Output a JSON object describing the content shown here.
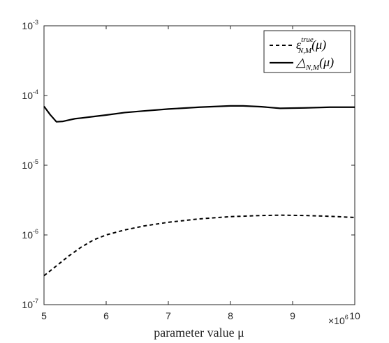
{
  "chart_data": {
    "type": "line",
    "xlabel": "parameter value μ",
    "x_multiplier_label": {
      "base": "×10",
      "exp": "6"
    },
    "xlim": [
      5000000,
      10000000
    ],
    "ylim": [
      1e-07,
      0.001
    ],
    "yscale": "log",
    "xticks": [
      {
        "value": 5000000,
        "label": "5"
      },
      {
        "value": 6000000,
        "label": "6"
      },
      {
        "value": 7000000,
        "label": "7"
      },
      {
        "value": 8000000,
        "label": "8"
      },
      {
        "value": 9000000,
        "label": "9"
      },
      {
        "value": 10000000,
        "label": "10"
      }
    ],
    "yticks": [
      {
        "value": 1e-07,
        "base": "10",
        "exp": "-7"
      },
      {
        "value": 1e-06,
        "base": "10",
        "exp": "-6"
      },
      {
        "value": 1e-05,
        "base": "10",
        "exp": "-5"
      },
      {
        "value": 0.0001,
        "base": "10",
        "exp": "-4"
      },
      {
        "value": 0.001,
        "base": "10",
        "exp": "-3"
      }
    ],
    "grid": false,
    "legend_position": "top-right",
    "series": [
      {
        "key": "true_error",
        "name_main": "ε",
        "name_sup": "true",
        "name_sub": "N,M",
        "name_tail": "(μ)",
        "style": "dashed",
        "color": "#000000",
        "x": [
          5000000,
          5200000,
          5400000,
          5600000,
          5800000,
          6000000,
          6300000,
          6600000,
          7000000,
          7500000,
          8000000,
          8500000,
          8800000,
          9200000,
          9600000,
          10000000
        ],
        "y": [
          2.6e-07,
          3.6e-07,
          5e-07,
          6.7e-07,
          8.5e-07,
          1e-06,
          1.18e-06,
          1.34e-06,
          1.52e-06,
          1.7e-06,
          1.83e-06,
          1.9e-06,
          1.92e-06,
          1.9e-06,
          1.85e-06,
          1.78e-06
        ]
      },
      {
        "key": "estimator",
        "name_main": "△",
        "name_sup": "",
        "name_sub": "N,M",
        "name_tail": "(μ)",
        "style": "solid",
        "color": "#000000",
        "x": [
          5000000,
          5100000,
          5200000,
          5300000,
          5400000,
          5500000,
          5600000,
          5800000,
          6000000,
          6300000,
          6600000,
          7000000,
          7500000,
          8000000,
          8200000,
          8500000,
          8800000,
          9200000,
          9600000,
          10000000
        ],
        "y": [
          7e-05,
          5.3e-05,
          4.2e-05,
          4.25e-05,
          4.45e-05,
          4.65e-05,
          4.75e-05,
          5e-05,
          5.25e-05,
          5.7e-05,
          6e-05,
          6.4e-05,
          6.8e-05,
          7.1e-05,
          7.1e-05,
          6.9e-05,
          6.55e-05,
          6.65e-05,
          6.8e-05,
          6.8e-05
        ]
      }
    ]
  }
}
